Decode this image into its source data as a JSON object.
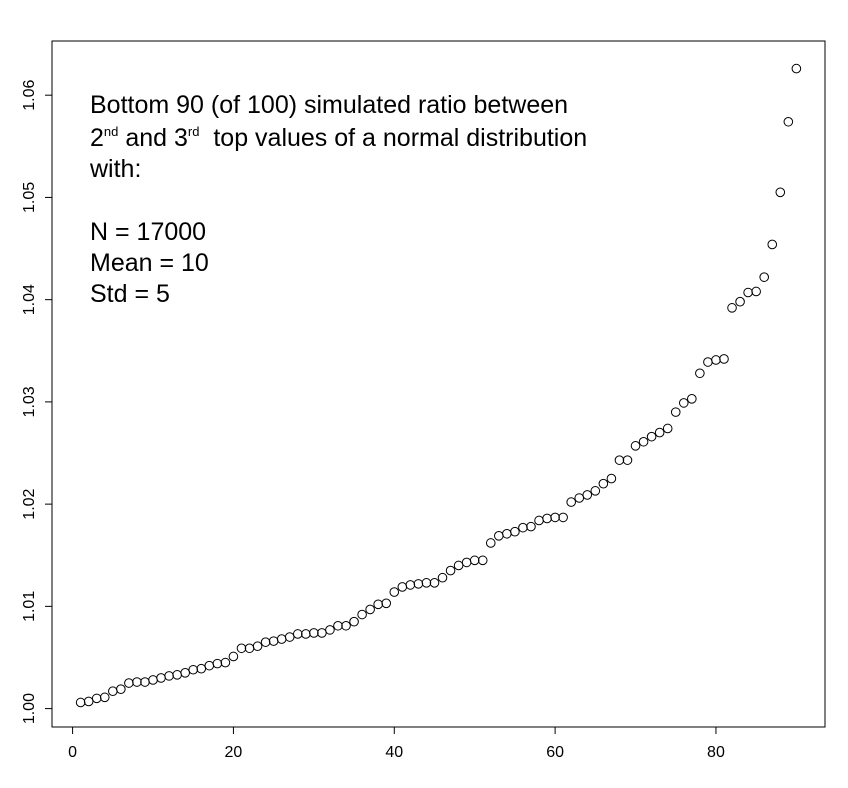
{
  "chart_data": {
    "type": "scatter",
    "annotation": {
      "line1": "Bottom 90 (of 100) simulated ratio between",
      "line2": [
        "2",
        "nd",
        " and 3",
        "rd",
        "  top values of a normal distribution"
      ],
      "line3": "with:",
      "line4": "N = 17000",
      "line5": "Mean = 10",
      "line6": "Std = 5"
    },
    "x": [
      1,
      2,
      3,
      4,
      5,
      6,
      7,
      8,
      9,
      10,
      11,
      12,
      13,
      14,
      15,
      16,
      17,
      18,
      19,
      20,
      21,
      22,
      23,
      24,
      25,
      26,
      27,
      28,
      29,
      30,
      31,
      32,
      33,
      34,
      35,
      36,
      37,
      38,
      39,
      40,
      41,
      42,
      43,
      44,
      45,
      46,
      47,
      48,
      49,
      50,
      51,
      52,
      53,
      54,
      55,
      56,
      57,
      58,
      59,
      60,
      61,
      62,
      63,
      64,
      65,
      66,
      67,
      68,
      69,
      70,
      71,
      72,
      73,
      74,
      75,
      76,
      77,
      78,
      79,
      80,
      81,
      82,
      83,
      84,
      85,
      86,
      87,
      88,
      89,
      90
    ],
    "values": [
      1.0006,
      1.0007,
      1.001,
      1.0011,
      1.0017,
      1.0019,
      1.0025,
      1.0026,
      1.0026,
      1.0028,
      1.003,
      1.0032,
      1.0033,
      1.0035,
      1.0038,
      1.0039,
      1.0042,
      1.0044,
      1.0045,
      1.0051,
      1.0059,
      1.0059,
      1.0061,
      1.0065,
      1.0066,
      1.0068,
      1.007,
      1.0073,
      1.0073,
      1.0074,
      1.0074,
      1.0077,
      1.0081,
      1.0081,
      1.0085,
      1.0092,
      1.0097,
      1.0102,
      1.0103,
      1.0114,
      1.0119,
      1.0121,
      1.0122,
      1.0123,
      1.0123,
      1.0128,
      1.0135,
      1.014,
      1.0143,
      1.0145,
      1.0145,
      1.0162,
      1.0169,
      1.0171,
      1.0173,
      1.0177,
      1.0178,
      1.0184,
      1.0186,
      1.0187,
      1.0187,
      1.0202,
      1.0206,
      1.0209,
      1.0213,
      1.022,
      1.0225,
      1.0243,
      1.0243,
      1.0257,
      1.0261,
      1.0266,
      1.027,
      1.0274,
      1.029,
      1.0299,
      1.0303,
      1.0328,
      1.0339,
      1.0341,
      1.0342,
      1.0392,
      1.0398,
      1.0407,
      1.0408,
      1.0422,
      1.0454,
      1.0505,
      1.0574,
      1.0626
    ],
    "color": "#000000",
    "xlim": [
      -2.56,
      93.56
    ],
    "ylim": [
      0.9982,
      1.0653
    ],
    "xticks": [
      0,
      20,
      40,
      60,
      80
    ],
    "yticks": [
      {
        "value": 1,
        "label": "1.00"
      },
      1.01,
      1.02,
      1.03,
      1.04,
      1.05,
      1.06
    ]
  }
}
